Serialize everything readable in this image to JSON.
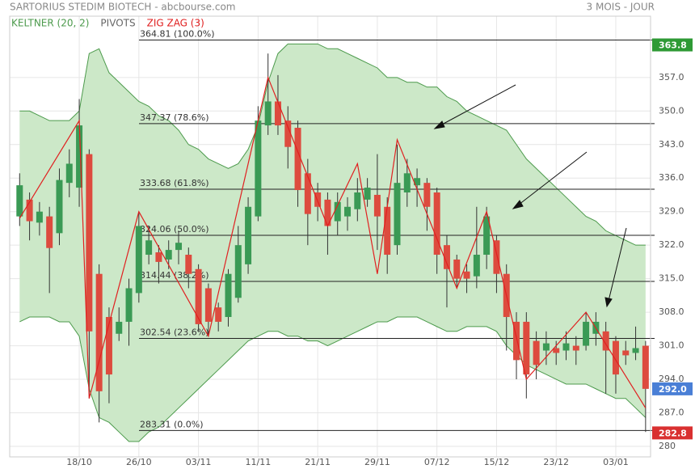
{
  "chart_data": {
    "type": "candlestick",
    "title": "SARTORIUS STEDIM BIOTECH - abcbourse.com",
    "period": "3 MOIS - JOUR",
    "indicators": [
      {
        "name": "KELTNER (20, 2)",
        "color": "#4c9a4c"
      },
      {
        "name": "PIVOTS",
        "color": "#666666"
      },
      {
        "name": "ZIG ZAG (3)",
        "color": "#e02020"
      }
    ],
    "xlim": [
      -1,
      63.5
    ],
    "ylim": [
      277.8,
      369.8
    ],
    "xticks": [
      {
        "value": 6,
        "label": "18/10"
      },
      {
        "value": 12,
        "label": "26/10"
      },
      {
        "value": 18,
        "label": "03/11"
      },
      {
        "value": 24,
        "label": "11/11"
      },
      {
        "value": 30,
        "label": "21/11"
      },
      {
        "value": 36,
        "label": "29/11"
      },
      {
        "value": 42,
        "label": "07/12"
      },
      {
        "value": 48,
        "label": "15/12"
      },
      {
        "value": 54,
        "label": "23/12"
      },
      {
        "value": 60,
        "label": "03/01"
      }
    ],
    "yticks": [
      280,
      {
        "value": 287,
        "label": "287.0"
      },
      {
        "value": 294,
        "label": "294.0"
      },
      {
        "value": 301,
        "label": "301.0"
      },
      {
        "value": 308,
        "label": "308.0"
      },
      {
        "value": 315,
        "label": "315.0"
      },
      {
        "value": 322,
        "label": "322.0"
      },
      {
        "value": 329,
        "label": "329.0"
      },
      {
        "value": 336,
        "label": "336.0"
      },
      {
        "value": 343,
        "label": "343.0"
      },
      {
        "value": 350,
        "label": "350.0"
      },
      {
        "value": 357,
        "label": "357.0"
      }
    ],
    "up_color": "#3a9a55",
    "down_color": "#dd4b3e",
    "open": [
      328,
      331.5,
      326.7,
      328,
      324.5,
      335,
      334,
      341,
      316,
      307,
      303.5,
      306,
      312,
      320,
      320.5,
      319,
      321,
      320,
      317,
      313,
      309,
      307,
      311,
      318,
      328,
      347,
      352,
      348,
      346.5,
      337,
      333,
      331.5,
      327,
      328,
      329.5,
      331.5,
      332.5,
      330,
      322,
      333,
      334.5,
      335,
      333,
      322,
      319,
      316.5,
      315.5,
      320,
      323,
      316,
      306,
      306,
      302,
      300,
      300.5,
      300,
      301,
      301,
      303.5,
      304,
      302,
      300,
      299.5,
      301
    ],
    "high": [
      337,
      333,
      331,
      330,
      338,
      342,
      352.5,
      342,
      318,
      309,
      309,
      315,
      329,
      326,
      322,
      323,
      325,
      321.5,
      318,
      314,
      310,
      317,
      326,
      332,
      351,
      362,
      357.5,
      351,
      348,
      340,
      335,
      333,
      333,
      332,
      336,
      336,
      341,
      332,
      343,
      340,
      338,
      336,
      334,
      324,
      320,
      318,
      330,
      330,
      324,
      318,
      308,
      308,
      304,
      304,
      302,
      304,
      303,
      308,
      308,
      306,
      303,
      302,
      305,
      302
    ],
    "low": [
      326,
      323,
      324,
      312,
      322,
      332,
      330,
      290,
      285,
      289,
      302,
      301,
      310,
      318,
      314,
      317,
      318,
      313,
      304,
      303,
      304,
      305,
      310,
      316,
      327,
      345,
      345,
      338,
      330,
      322,
      327,
      320,
      324,
      325,
      327,
      330,
      321,
      316,
      320,
      330,
      330,
      325,
      316,
      309,
      313,
      312,
      313,
      317,
      312,
      300,
      294,
      290,
      294,
      297,
      297,
      298,
      297,
      300,
      301,
      291,
      291,
      297,
      298,
      283
    ],
    "close": [
      334.5,
      327,
      329,
      321.4,
      335.6,
      339,
      347,
      304,
      291.5,
      295,
      306,
      313,
      326,
      323,
      318.5,
      321,
      322.5,
      316,
      305.5,
      306,
      306,
      316,
      322,
      330,
      348,
      352,
      347,
      342.5,
      333.5,
      328.5,
      330,
      326,
      331,
      330,
      333,
      334,
      328,
      320,
      335,
      337,
      336,
      330,
      320,
      317,
      315,
      315,
      320,
      328,
      316,
      307,
      298,
      295,
      297,
      301.5,
      299.5,
      301.5,
      300,
      306,
      306,
      300,
      295,
      299,
      300.5,
      292
    ],
    "keltner_upper": [
      350,
      350,
      349,
      348,
      348,
      348,
      350,
      362,
      363,
      358,
      356,
      354,
      352,
      351,
      349,
      348,
      346,
      343,
      342,
      340,
      339,
      338,
      339,
      342,
      347,
      356,
      362,
      364,
      364,
      364,
      364,
      363,
      363,
      362,
      361,
      360,
      359,
      357,
      357,
      356,
      356,
      355,
      355,
      353,
      352,
      350,
      349,
      348,
      347,
      346,
      343,
      340,
      338,
      336,
      334,
      332,
      330,
      328,
      327,
      325,
      324,
      323,
      322,
      322
    ],
    "keltner_lower": [
      306,
      307,
      307,
      307,
      306,
      306,
      303,
      292,
      286,
      285,
      283,
      281,
      281,
      283,
      284,
      286,
      288,
      290,
      292,
      294,
      296,
      298,
      300,
      302,
      303,
      304,
      304,
      303,
      303,
      302,
      302,
      301,
      302,
      303,
      304,
      305,
      306,
      306,
      307,
      307,
      307,
      306,
      305,
      304,
      304,
      305,
      305,
      305,
      304,
      301,
      299,
      297,
      296,
      295,
      294,
      293,
      293,
      293,
      292,
      291,
      290,
      290,
      288,
      286
    ],
    "zigzag": {
      "x": [
        0,
        6,
        7,
        12,
        19,
        25,
        31,
        34,
        36,
        38,
        44,
        47,
        51,
        57,
        63
      ],
      "values": [
        327.6,
        348,
        290,
        329,
        303,
        357,
        326,
        339,
        316,
        344,
        313,
        329,
        294,
        308,
        288
      ]
    },
    "levels": [
      {
        "value": 364.81,
        "label": "364.81  (100.0%)"
      },
      {
        "value": 347.37,
        "label": "347.37  (78.6%)"
      },
      {
        "value": 333.68,
        "label": "333.68  (61.8%)"
      },
      {
        "value": 324.06,
        "label": "324.06  (50.0%)"
      },
      {
        "value": 314.44,
        "label": "314.44  (38.2%)"
      },
      {
        "value": 302.54,
        "label": "302.54  (23.6%)"
      },
      {
        "value": 283.31,
        "label": "283.31  (0.0%)"
      }
    ],
    "price_tags": [
      {
        "value": 363.8,
        "color": "#2e9a35"
      },
      {
        "value": {
          "value": 292,
          "label": "292.0"
        },
        "color": "#4a7fd6"
      },
      {
        "value": 282.8,
        "color": "#d93030"
      }
    ],
    "grid": true
  }
}
